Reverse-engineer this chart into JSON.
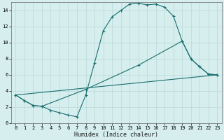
{
  "title": "",
  "xlabel": "Humidex (Indice chaleur)",
  "bg_color": "#d6eeee",
  "grid_color": "#b8d8d8",
  "line_color": "#1a6e6e",
  "xlim": [
    -0.5,
    23.5
  ],
  "ylim": [
    0,
    15
  ],
  "xticks": [
    0,
    1,
    2,
    3,
    4,
    5,
    6,
    7,
    8,
    9,
    10,
    11,
    12,
    13,
    14,
    15,
    16,
    17,
    18,
    19,
    20,
    21,
    22,
    23
  ],
  "yticks": [
    0,
    2,
    4,
    6,
    8,
    10,
    12,
    14
  ],
  "series0_x": [
    0,
    1,
    2,
    3,
    4,
    5,
    6,
    7,
    8,
    9,
    10,
    11,
    12,
    13,
    14,
    15,
    16,
    17,
    18,
    19,
    20,
    21,
    22,
    23
  ],
  "series0_y": [
    3.5,
    2.8,
    2.2,
    2.1,
    1.6,
    1.3,
    1.0,
    0.8,
    3.5,
    7.5,
    11.5,
    13.2,
    14.0,
    14.8,
    14.9,
    14.7,
    14.8,
    14.4,
    13.3,
    10.2,
    8.0,
    7.0,
    6.1,
    6.0
  ],
  "series1_x": [
    0,
    23
  ],
  "series1_y": [
    3.5,
    6.0
  ],
  "series2_x": [
    0,
    1,
    2,
    3,
    8,
    14,
    19,
    20,
    21,
    22,
    23
  ],
  "series2_y": [
    3.5,
    2.8,
    2.2,
    2.1,
    4.2,
    7.2,
    10.2,
    8.0,
    7.0,
    6.1,
    6.0
  ],
  "tick_labelsize": 5.0,
  "xlabel_fontsize": 6.0
}
